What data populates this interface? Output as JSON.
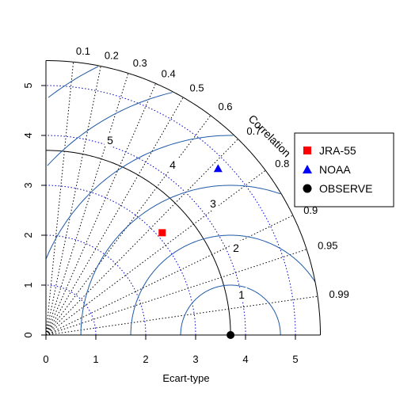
{
  "chart_data": {
    "type": "scatter",
    "title": "",
    "xlabel": "Ecart-type",
    "ylabel": "",
    "correlation_label": "Correlation",
    "sd_max": 5.5,
    "sd_ticks": [
      0,
      1,
      2,
      3,
      4,
      5
    ],
    "sd_arcs": [
      1,
      2,
      3,
      4,
      5
    ],
    "correlation_ticks": [
      "0.1",
      "0.2",
      "0.3",
      "0.4",
      "0.5",
      "0.6",
      "0.7",
      "0.8",
      "0.9",
      "0.95",
      "0.99"
    ],
    "reference_sd": 3.7,
    "rms_contours": [
      {
        "value": 1,
        "label": "1"
      },
      {
        "value": 2,
        "label": "2"
      },
      {
        "value": 3,
        "label": "3"
      },
      {
        "value": 4,
        "label": "4"
      },
      {
        "value": 5,
        "label": "5"
      },
      {
        "value": 6,
        "label": ""
      }
    ],
    "series": [
      {
        "name": "JRA-55",
        "marker": "square",
        "color": "#ff0000",
        "x": 2.33,
        "y": 2.05
      },
      {
        "name": "NOAA",
        "marker": "triangle",
        "color": "#0000ff",
        "x": 3.45,
        "y": 3.33
      },
      {
        "name": "OBSERVE",
        "marker": "circle",
        "color": "#000000",
        "x": 3.7,
        "y": 0
      }
    ],
    "colors": {
      "rms": "#1f5aa6",
      "sd_arc": "#0000cc",
      "axes": "#000000"
    },
    "legend_position": "right"
  }
}
